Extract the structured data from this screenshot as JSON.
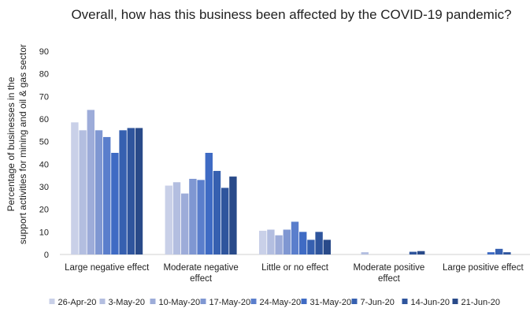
{
  "chart_data": {
    "type": "bar",
    "title": "Overall, how has this business been affected by the COVID-19 pandemic?",
    "ylabel_lines": [
      "Percentage of businesses in the",
      "support activities for mining and oil & gas sector"
    ],
    "xlabel": "",
    "ylim": [
      0,
      90
    ],
    "yticks": [
      0,
      10,
      20,
      30,
      40,
      50,
      60,
      70,
      80,
      90
    ],
    "grid": false,
    "legend_position": "bottom",
    "categories": [
      "Large negative effect",
      "Moderate negative effect",
      "Little or no effect",
      "Moderate positive effect",
      "Large positive effect"
    ],
    "series": [
      {
        "name": "26-Apr-20",
        "color": "#c9d0e8",
        "values": [
          58.5,
          30.5,
          10.5,
          0,
          0
        ]
      },
      {
        "name": "3-May-20",
        "color": "#b3bee0",
        "values": [
          55,
          32,
          11,
          1,
          0
        ]
      },
      {
        "name": "10-May-20",
        "color": "#9dacd9",
        "values": [
          64,
          27,
          8.5,
          0,
          0
        ]
      },
      {
        "name": "17-May-20",
        "color": "#7f97d2",
        "values": [
          55,
          33.5,
          11,
          0,
          0
        ]
      },
      {
        "name": "24-May-20",
        "color": "#5a7ecc",
        "values": [
          52,
          33,
          14.5,
          0,
          0
        ]
      },
      {
        "name": "31-May-20",
        "color": "#3f6bc4",
        "values": [
          45,
          45,
          10,
          0,
          1
        ]
      },
      {
        "name": "7-Jun-20",
        "color": "#3660b0",
        "values": [
          55,
          37,
          6.5,
          0,
          2.5
        ]
      },
      {
        "name": "14-Jun-20",
        "color": "#2f559d",
        "values": [
          56,
          29.5,
          10,
          1.2,
          1
        ]
      },
      {
        "name": "21-Jun-20",
        "color": "#294a89",
        "values": [
          56,
          34.5,
          6.5,
          1.5,
          0
        ]
      }
    ]
  }
}
